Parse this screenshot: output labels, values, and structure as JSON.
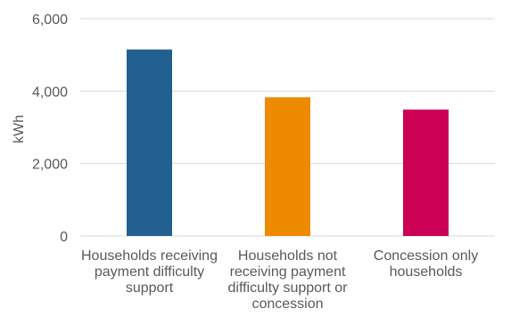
{
  "chart_data": {
    "type": "bar",
    "title": "",
    "xlabel": "",
    "ylabel": "kWh",
    "ylim": [
      0,
      6000
    ],
    "yticks": [
      0,
      2000,
      4000,
      6000
    ],
    "ytick_labels": [
      "0",
      "2,000",
      "4,000",
      "6,000"
    ],
    "grid": true,
    "legend": "none",
    "categories": [
      [
        "Households receiving",
        "payment difficulty",
        "support"
      ],
      [
        "Households not",
        "receiving payment",
        "difficulty support or",
        "concession"
      ],
      [
        "Concession only",
        "households"
      ]
    ],
    "values": [
      5150,
      3830,
      3490
    ],
    "colors": [
      "#22608F",
      "#EE8A00",
      "#CC0055"
    ]
  },
  "style": {
    "grid_color": "#D9D9D9",
    "axis_text_color": "#595959"
  }
}
